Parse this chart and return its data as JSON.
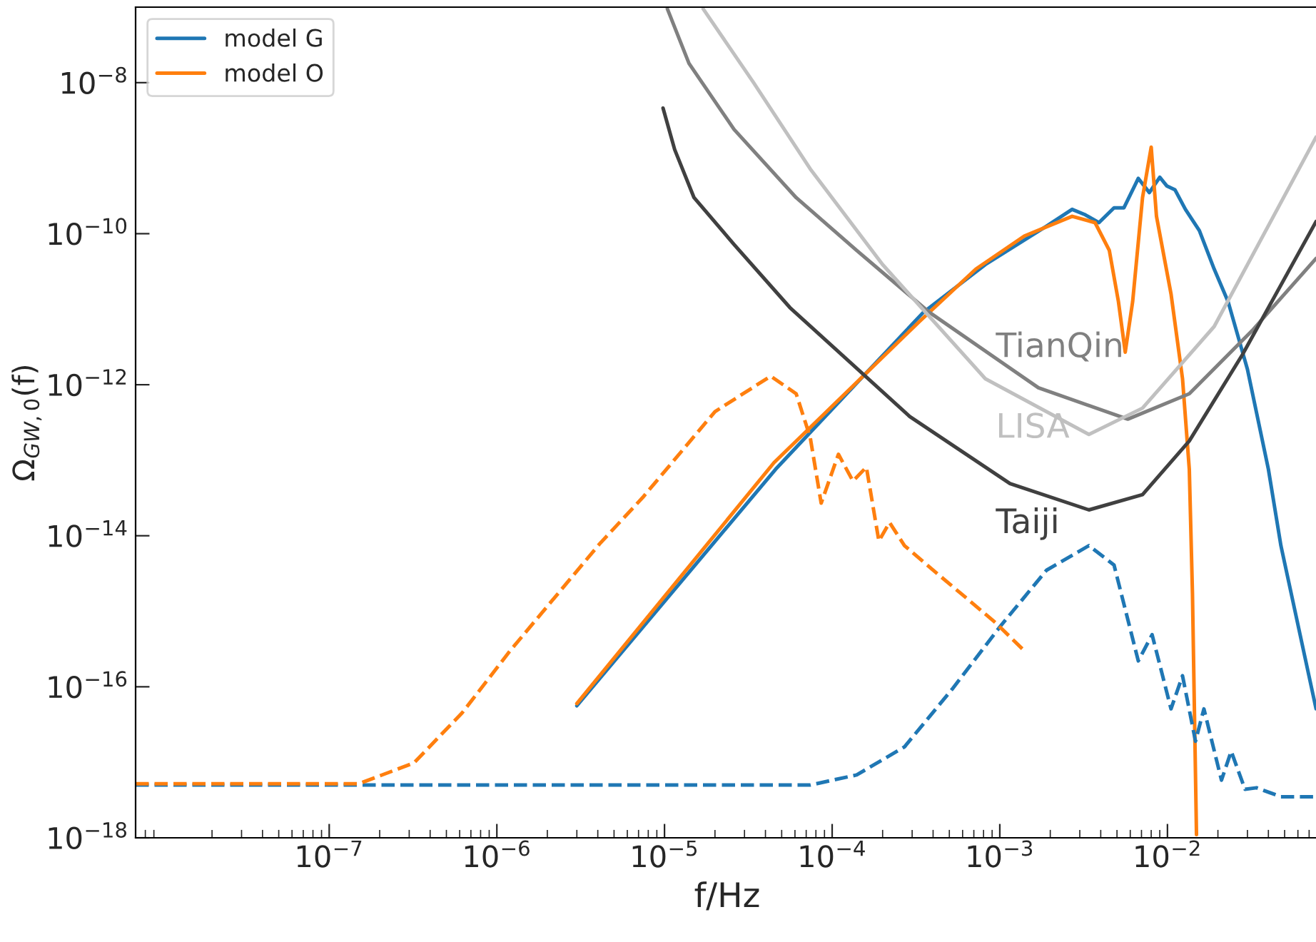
{
  "chart_data": {
    "type": "line",
    "xlabel": "f/Hz",
    "ylabel": "Ω$_{GW,0}$(f)",
    "log": "xy",
    "grid": false,
    "legend": "top left",
    "tick_labels": true,
    "xlim": [
      7e-09,
      0.08
    ],
    "ylim": [
      1e-18,
      1e-07
    ],
    "xticks": [
      {
        "value": 1e-07,
        "label": "10$^{−7}$"
      },
      {
        "value": 1e-06,
        "label": "10$^{−6}$"
      },
      {
        "value": 1e-05,
        "label": "10$^{−5}$"
      },
      {
        "value": 0.0001,
        "label": "10$^{−4}$"
      },
      {
        "value": 0.001,
        "label": "10$^{−3}$"
      },
      {
        "value": 0.01,
        "label": "10$^{−2}$"
      }
    ],
    "yticks": [
      {
        "value": 1e-18,
        "label": "10$^{−18}$"
      },
      {
        "value": 1e-16,
        "label": "10$^{−16}$"
      },
      {
        "value": 1e-14,
        "label": "10$^{−14}$"
      },
      {
        "value": 1e-12,
        "label": "10$^{−12}$"
      },
      {
        "value": 1e-10,
        "label": "10$^{−10}$"
      },
      {
        "value": 1e-08,
        "label": "10$^{−8}$"
      }
    ],
    "series": [
      {
        "name": "model G",
        "color": "#1f77b4",
        "line_style": "solid",
        "x": [
          3e-06,
          4.6e-05,
          0.00035,
          0.00082,
          0.0019,
          0.0027,
          0.0032,
          0.0039,
          0.0048,
          0.0055,
          0.0067,
          0.0078,
          0.009,
          0.0099,
          0.0111,
          0.0128,
          0.0155,
          0.019,
          0.023,
          0.03,
          0.04,
          0.0475,
          0.077
        ],
        "values": [
          5.6e-17,
          7.6e-14,
          9.1e-12,
          3.9e-11,
          1.26e-10,
          2.1e-10,
          1.8e-10,
          1.4e-10,
          2.2e-10,
          2.2e-10,
          5.4e-10,
          3.5e-10,
          5.6e-10,
          4.3e-10,
          3.8e-10,
          2.1e-10,
          1.1e-10,
          3.4e-11,
          1.26e-11,
          1.6e-12,
          7.6e-14,
          7.4e-15,
          5.1e-17
        ]
      },
      {
        "name": "model O",
        "color": "#ff7f0e",
        "line_style": "solid",
        "x": [
          3e-06,
          4.5e-05,
          0.00033,
          0.00072,
          0.0014,
          0.0027,
          0.0037,
          0.0045,
          0.0051,
          0.0056,
          0.0062,
          0.0071,
          0.008,
          0.0086,
          0.0105,
          0.0123,
          0.0135,
          0.0141,
          0.0149
        ],
        "values": [
          6e-17,
          9.3e-14,
          6.8e-12,
          3.4e-11,
          9.3e-11,
          1.7e-10,
          1.4e-10,
          6e-11,
          1.26e-11,
          2.7e-12,
          1.26e-11,
          3e-10,
          1.4e-09,
          1.7e-10,
          1.6e-11,
          1.2e-12,
          7.6e-14,
          1.7e-15,
          1.1e-18
        ]
      },
      {
        "color": "#1f77b4",
        "line_style": "dashed",
        "x": [
          7e-09,
          7.4e-05,
          0.00014,
          0.00027,
          0.00052,
          0.001,
          0.0019,
          0.0034,
          0.0048,
          0.0067,
          0.0081,
          0.0105,
          0.0123,
          0.0147,
          0.0165,
          0.021,
          0.024,
          0.029,
          0.034,
          0.0475,
          0.077
        ],
        "values": [
          5e-18,
          5e-18,
          6.8e-18,
          1.6e-17,
          9.3e-17,
          6.2e-16,
          3.5e-15,
          7.4e-15,
          4.1e-15,
          2.2e-16,
          4.9e-16,
          5.1e-17,
          1.4e-16,
          1.9e-17,
          5.1e-17,
          5.8e-18,
          1.4e-17,
          4.4e-18,
          4.6e-18,
          3.5e-18,
          3.5e-18
        ]
      },
      {
        "color": "#ff7f0e",
        "line_style": "dashed",
        "x": [
          7e-09,
          1.5e-07,
          3.2e-07,
          6.2e-07,
          1.2e-06,
          4.1e-06,
          7.4e-06,
          2e-05,
          4.3e-05,
          6.1e-05,
          7.4e-05,
          8.6e-05,
          0.000109,
          0.000133,
          0.00016,
          0.00019,
          0.00022,
          0.00027,
          0.0004,
          0.00059,
          0.00094,
          0.0014
        ],
        "values": [
          5.2e-18,
          5.2e-18,
          9.8e-18,
          4.5e-17,
          3e-16,
          7.8e-15,
          3.2e-14,
          4.4e-13,
          1.3e-12,
          7.6e-13,
          2e-13,
          2.7e-14,
          1.2e-13,
          5.3e-14,
          8.1e-14,
          8.5e-15,
          1.5e-14,
          7.4e-15,
          3.5e-15,
          1.7e-15,
          7.1e-16,
          3e-16
        ]
      },
      {
        "name": "TianQin",
        "color": "#808080",
        "line_style": "solid",
        "x": [
          1.04e-05,
          1.4e-05,
          2.6e-05,
          6.1e-05,
          0.00014,
          0.00038,
          0.0017,
          0.0058,
          0.0135,
          0.032,
          0.077
        ],
        "values": [
          9.5e-08,
          1.8e-08,
          2.4e-09,
          3e-10,
          6e-11,
          9.1e-12,
          9.1e-13,
          3.5e-13,
          7.6e-13,
          5.2e-12,
          4.7e-11
        ]
      },
      {
        "name": "LISA",
        "color": "#c0c0c0",
        "line_style": "solid",
        "x": [
          1.7e-05,
          3.4e-05,
          7.4e-05,
          0.0002,
          0.00082,
          0.0034,
          0.0071,
          0.019,
          0.077
        ],
        "values": [
          9.5e-08,
          1e-08,
          7.2e-10,
          3.9e-11,
          1.2e-12,
          2.2e-13,
          4.9e-13,
          5.9e-12,
          1.9e-09
        ]
      },
      {
        "name": "Taiji",
        "color": "#404040",
        "line_style": "solid",
        "x": [
          9.8e-06,
          1.15e-05,
          1.5e-05,
          2.6e-05,
          5.6e-05,
          0.00029,
          0.00115,
          0.0034,
          0.0071,
          0.0135,
          0.028,
          0.077
        ],
        "values": [
          4.6e-09,
          1.3e-09,
          3e-10,
          7.2e-11,
          1.05e-11,
          3.8e-13,
          4.9e-14,
          2.2e-14,
          3.5e-14,
          1.8e-13,
          2.5e-12,
          1.45e-10
        ]
      }
    ]
  }
}
